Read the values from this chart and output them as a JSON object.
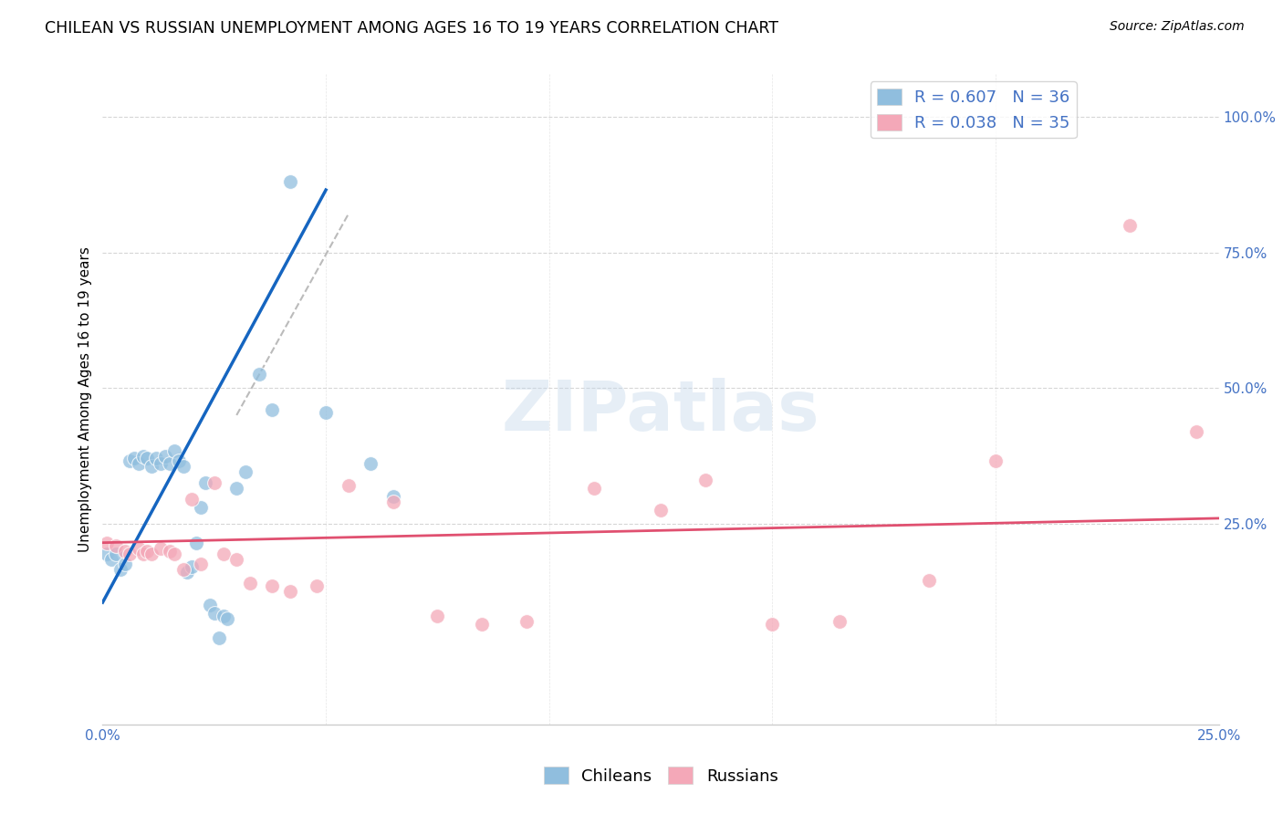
{
  "title": "CHILEAN VS RUSSIAN UNEMPLOYMENT AMONG AGES 16 TO 19 YEARS CORRELATION CHART",
  "source": "Source: ZipAtlas.com",
  "ylabel": "Unemployment Among Ages 16 to 19 years",
  "xlim": [
    0.0,
    0.25
  ],
  "ylim": [
    -0.12,
    1.08
  ],
  "xtick_positions": [
    0.0,
    0.25
  ],
  "xtick_labels": [
    "0.0%",
    "25.0%"
  ],
  "yticks_right": [
    0.25,
    0.5,
    0.75,
    1.0
  ],
  "ytick_labels_right": [
    "25.0%",
    "50.0%",
    "75.0%",
    "100.0%"
  ],
  "blue_scatter_x": [
    0.001,
    0.002,
    0.003,
    0.004,
    0.005,
    0.006,
    0.007,
    0.008,
    0.009,
    0.01,
    0.011,
    0.012,
    0.013,
    0.014,
    0.015,
    0.016,
    0.017,
    0.018,
    0.019,
    0.02,
    0.021,
    0.022,
    0.023,
    0.024,
    0.025,
    0.026,
    0.027,
    0.028,
    0.03,
    0.032,
    0.035,
    0.038,
    0.042,
    0.05,
    0.06,
    0.065
  ],
  "blue_scatter_y": [
    0.195,
    0.185,
    0.195,
    0.165,
    0.175,
    0.365,
    0.37,
    0.36,
    0.375,
    0.37,
    0.355,
    0.37,
    0.36,
    0.375,
    0.36,
    0.385,
    0.365,
    0.355,
    0.16,
    0.17,
    0.215,
    0.28,
    0.325,
    0.1,
    0.085,
    0.04,
    0.08,
    0.075,
    0.315,
    0.345,
    0.525,
    0.46,
    0.88,
    0.455,
    0.36,
    0.3
  ],
  "pink_scatter_x": [
    0.001,
    0.003,
    0.005,
    0.006,
    0.008,
    0.009,
    0.01,
    0.011,
    0.013,
    0.015,
    0.016,
    0.018,
    0.02,
    0.022,
    0.025,
    0.027,
    0.03,
    0.033,
    0.038,
    0.042,
    0.048,
    0.055,
    0.065,
    0.075,
    0.085,
    0.095,
    0.11,
    0.125,
    0.135,
    0.15,
    0.165,
    0.185,
    0.2,
    0.23,
    0.245
  ],
  "pink_scatter_y": [
    0.215,
    0.21,
    0.2,
    0.195,
    0.205,
    0.195,
    0.2,
    0.195,
    0.205,
    0.2,
    0.195,
    0.165,
    0.295,
    0.175,
    0.325,
    0.195,
    0.185,
    0.14,
    0.135,
    0.125,
    0.135,
    0.32,
    0.29,
    0.08,
    0.065,
    0.07,
    0.315,
    0.275,
    0.33,
    0.065,
    0.07,
    0.145,
    0.365,
    0.8,
    0.42
  ],
  "blue_line_x": [
    0.0,
    0.05
  ],
  "blue_line_y": [
    0.105,
    0.865
  ],
  "pink_line_x": [
    0.0,
    0.25
  ],
  "pink_line_y": [
    0.215,
    0.26
  ],
  "diag_line_x": [
    0.03,
    0.055
  ],
  "diag_line_y": [
    0.45,
    0.82
  ],
  "blue_color": "#90bede",
  "pink_color": "#f4a8b8",
  "blue_line_color": "#1565c0",
  "pink_line_color": "#e05070",
  "diag_line_color": "#bbbbbb",
  "axis_color": "#4472c4",
  "grid_color": "#cccccc",
  "bg_color": "#ffffff",
  "title_fontsize": 12.5,
  "source_fontsize": 10,
  "axis_label_fontsize": 11,
  "tick_fontsize": 11,
  "legend_fontsize": 13,
  "legend_r_blue": "R = 0.607",
  "legend_n_blue": "N = 36",
  "legend_r_pink": "R = 0.038",
  "legend_n_pink": "N = 35"
}
